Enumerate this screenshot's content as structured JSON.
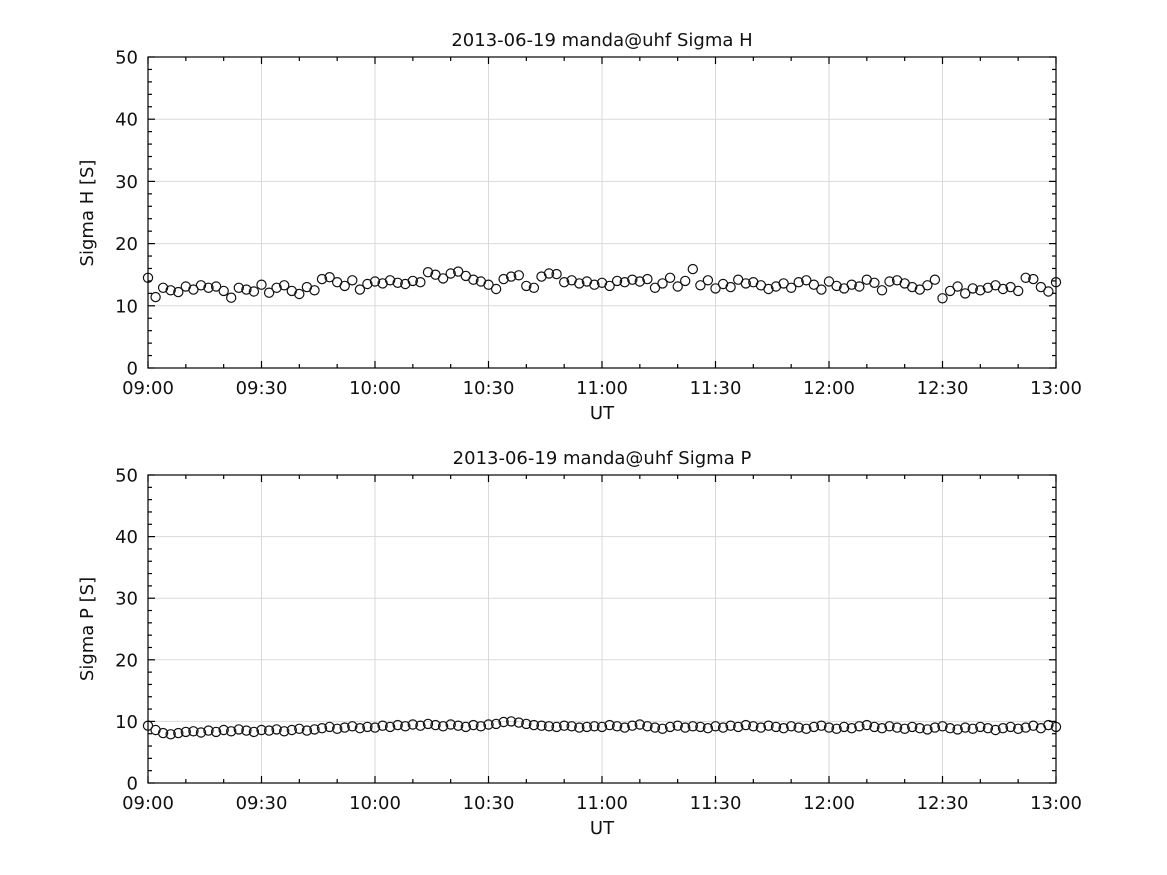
{
  "figure": {
    "background": "#ffffff",
    "marker_color": "#000000",
    "grid_color": "#d9d9d9"
  },
  "chart_data": [
    {
      "type": "scatter",
      "title": "2013-06-19  manda@uhf Sigma H",
      "xlabel": "UT",
      "ylabel": "Sigma H [S]",
      "x_unit": "minutes after 09:00 UT",
      "xlim": [
        0,
        240
      ],
      "ylim": [
        0,
        50
      ],
      "grid": true,
      "marker": "open-circle",
      "xticks": {
        "values": [
          0,
          30,
          60,
          90,
          120,
          150,
          180,
          210,
          240
        ],
        "labels": [
          "09:00",
          "09:30",
          "10:00",
          "10:30",
          "11:00",
          "11:30",
          "12:00",
          "12:30",
          "13:00"
        ]
      },
      "yticks": {
        "values": [
          0,
          10,
          20,
          30,
          40,
          50
        ],
        "labels": [
          "0",
          "10",
          "20",
          "30",
          "40",
          "50"
        ]
      },
      "x_minor_step": 10,
      "y_minor_step": 2,
      "x_minutes_start": 0,
      "x_minutes_step": 2,
      "values": [
        14.5,
        11.4,
        12.9,
        12.5,
        12.2,
        13.1,
        12.6,
        13.3,
        12.9,
        13.1,
        12.4,
        11.3,
        12.9,
        12.6,
        12.3,
        13.4,
        12.1,
        12.9,
        13.3,
        12.4,
        11.9,
        13.0,
        12.5,
        14.3,
        14.6,
        13.8,
        13.2,
        14.1,
        12.6,
        13.5,
        13.9,
        13.6,
        14.1,
        13.7,
        13.5,
        14.0,
        13.8,
        15.4,
        15.0,
        14.4,
        15.2,
        15.5,
        14.8,
        14.2,
        13.9,
        13.4,
        12.7,
        14.3,
        14.7,
        14.9,
        13.2,
        12.9,
        14.7,
        15.2,
        15.1,
        13.8,
        14.1,
        13.6,
        13.9,
        13.4,
        13.7,
        13.2,
        14.0,
        13.8,
        14.2,
        13.9,
        14.3,
        12.9,
        13.6,
        14.5,
        13.1,
        14.0,
        15.9,
        13.3,
        14.1,
        12.8,
        13.5,
        13.0,
        14.2,
        13.6,
        13.8,
        13.3,
        12.7,
        13.1,
        13.6,
        12.9,
        13.8,
        14.1,
        13.4,
        12.6,
        13.9,
        13.2,
        12.8,
        13.4,
        13.1,
        14.2,
        13.7,
        12.5,
        13.9,
        14.1,
        13.6,
        13.0,
        12.6,
        13.3,
        14.2,
        11.2,
        12.4,
        13.1,
        12.0,
        12.8,
        12.5,
        12.9,
        13.3,
        12.7,
        13.0,
        12.4,
        14.5,
        14.3,
        13.0,
        12.3,
        13.8
      ]
    },
    {
      "type": "scatter",
      "title": "2013-06-19  manda@uhf Sigma P",
      "xlabel": "UT",
      "ylabel": "Sigma P [S]",
      "x_unit": "minutes after 09:00 UT",
      "xlim": [
        0,
        240
      ],
      "ylim": [
        0,
        50
      ],
      "grid": true,
      "marker": "open-circle",
      "xticks": {
        "values": [
          0,
          30,
          60,
          90,
          120,
          150,
          180,
          210,
          240
        ],
        "labels": [
          "09:00",
          "09:30",
          "10:00",
          "10:30",
          "11:00",
          "11:30",
          "12:00",
          "12:30",
          "13:00"
        ]
      },
      "yticks": {
        "values": [
          0,
          10,
          20,
          30,
          40,
          50
        ],
        "labels": [
          "0",
          "10",
          "20",
          "30",
          "40",
          "50"
        ]
      },
      "x_minor_step": 10,
      "y_minor_step": 2,
      "x_minutes_start": 0,
      "x_minutes_step": 2,
      "values": [
        9.3,
        8.6,
        8.1,
        7.9,
        8.1,
        8.3,
        8.4,
        8.2,
        8.5,
        8.3,
        8.6,
        8.4,
        8.7,
        8.5,
        8.3,
        8.6,
        8.5,
        8.7,
        8.4,
        8.6,
        8.8,
        8.5,
        8.7,
        8.9,
        9.1,
        8.8,
        9.0,
        9.2,
        8.9,
        9.1,
        9.0,
        9.3,
        9.1,
        9.4,
        9.2,
        9.5,
        9.3,
        9.6,
        9.4,
        9.2,
        9.5,
        9.3,
        9.1,
        9.4,
        9.2,
        9.5,
        9.6,
        9.9,
        10.0,
        9.8,
        9.6,
        9.4,
        9.3,
        9.2,
        9.1,
        9.3,
        9.2,
        9.0,
        9.1,
        9.2,
        9.1,
        9.4,
        9.2,
        9.0,
        9.3,
        9.5,
        9.2,
        9.0,
        8.8,
        9.1,
        9.3,
        9.0,
        9.2,
        9.1,
        8.9,
        9.2,
        9.0,
        9.3,
        9.1,
        9.4,
        9.2,
        9.0,
        9.3,
        9.1,
        8.9,
        9.2,
        9.0,
        8.8,
        9.1,
        9.3,
        9.0,
        8.8,
        9.1,
        8.9,
        9.2,
        9.4,
        9.1,
        8.9,
        9.2,
        9.0,
        8.8,
        9.1,
        8.9,
        8.7,
        9.0,
        9.2,
        8.9,
        8.7,
        9.0,
        8.8,
        9.1,
        8.9,
        8.6,
        8.9,
        9.1,
        8.8,
        9.0,
        9.3,
        8.9,
        9.4,
        9.1
      ]
    }
  ]
}
